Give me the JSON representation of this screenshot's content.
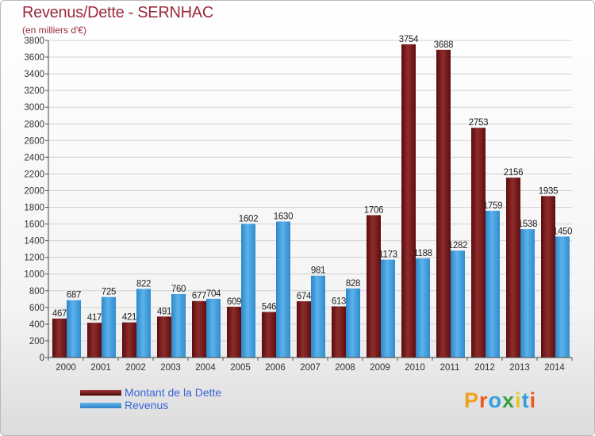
{
  "header": {
    "title": "Revenus/Dette - SERNHAC",
    "subtitle": "(en milliers d'€)"
  },
  "legend": {
    "items": [
      {
        "label": "Montant de la Dette",
        "color": "#7a1a1a"
      },
      {
        "label": "Revenus",
        "color": "#3a9ce0"
      }
    ]
  },
  "logo": {
    "text": "Proxiti",
    "colors": [
      "#f0a020",
      "#e85a1c",
      "#2ea0dc",
      "#3aa040",
      "#e8c81c",
      "#2ea0dc",
      "#e85a1c"
    ]
  },
  "chart_data": {
    "type": "bar",
    "categories": [
      "2000",
      "2001",
      "2002",
      "2003",
      "2004",
      "2005",
      "2006",
      "2007",
      "2008",
      "2009",
      "2010",
      "2011",
      "2012",
      "2013",
      "2014"
    ],
    "series": [
      {
        "name": "Montant de la Dette",
        "values": [
          467,
          417,
          421,
          491,
          677,
          609,
          546,
          674,
          613,
          1706,
          3754,
          3688,
          2753,
          2156,
          1935
        ],
        "color": "#7a1a1a"
      },
      {
        "name": "Revenus",
        "values": [
          687,
          725,
          822,
          760,
          704,
          1602,
          1630,
          981,
          828,
          1173,
          1188,
          1282,
          1759,
          1538,
          1450
        ],
        "color": "#3a9ce0"
      }
    ],
    "ylim": [
      0,
      3800
    ],
    "yticks": [
      0,
      200,
      400,
      600,
      800,
      1000,
      1200,
      1400,
      1600,
      1800,
      2000,
      2200,
      2400,
      2600,
      2800,
      3000,
      3200,
      3400,
      3600,
      3800
    ],
    "grid": true,
    "xlabel": "",
    "ylabel": "",
    "legend_position": "bottom-left"
  }
}
